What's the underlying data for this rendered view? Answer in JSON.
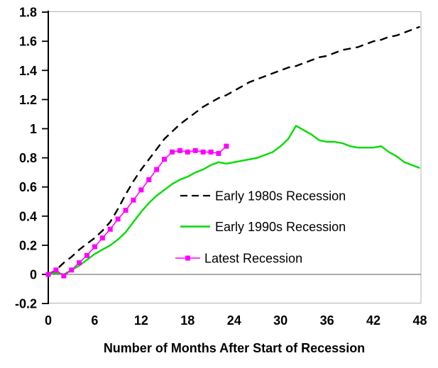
{
  "chart_data": {
    "type": "line",
    "title": "",
    "xlabel": "Number of Months After Start of Recession",
    "ylabel": "",
    "xlim": [
      0,
      48
    ],
    "ylim": [
      -0.2,
      1.8
    ],
    "grid": false,
    "zero_line": true,
    "legend_position": "inside-right",
    "x_tick_labels": [
      "0",
      "6",
      "12",
      "18",
      "24",
      "30",
      "36",
      "42",
      "48"
    ],
    "x_tick_values": [
      0,
      6,
      12,
      18,
      24,
      30,
      36,
      42,
      48
    ],
    "y_tick_labels": [
      "-0.2",
      "0",
      "0.2",
      "0.4",
      "0.6",
      "0.8",
      "1",
      "1.2",
      "1.4",
      "1.6",
      "1.8"
    ],
    "y_tick_values": [
      -0.2,
      0,
      0.2,
      0.4,
      0.6,
      0.8,
      1,
      1.2,
      1.4,
      1.6,
      1.8
    ],
    "x_unit": "months_after_recession_start",
    "series": [
      {
        "name": "Early 1980s Recession",
        "color": "#000000",
        "line_style": "dashed",
        "marker": "none",
        "x_start": 0,
        "values": [
          0.0,
          0.03,
          0.08,
          0.12,
          0.17,
          0.21,
          0.25,
          0.3,
          0.36,
          0.45,
          0.55,
          0.64,
          0.72,
          0.79,
          0.86,
          0.93,
          0.98,
          1.03,
          1.07,
          1.11,
          1.15,
          1.18,
          1.21,
          1.23,
          1.26,
          1.29,
          1.32,
          1.34,
          1.36,
          1.38,
          1.4,
          1.42,
          1.43,
          1.45,
          1.47,
          1.49,
          1.5,
          1.52,
          1.54,
          1.55,
          1.56,
          1.58,
          1.6,
          1.61,
          1.63,
          1.64,
          1.66,
          1.68,
          1.7
        ]
      },
      {
        "name": "Early 1990s Recession",
        "color": "#00DC00",
        "line_style": "solid",
        "marker": "none",
        "x_start": 0,
        "values": [
          0.0,
          0.01,
          0.0,
          0.03,
          0.06,
          0.1,
          0.14,
          0.17,
          0.2,
          0.24,
          0.29,
          0.36,
          0.43,
          0.49,
          0.54,
          0.58,
          0.62,
          0.65,
          0.67,
          0.7,
          0.72,
          0.75,
          0.77,
          0.76,
          0.77,
          0.78,
          0.79,
          0.8,
          0.82,
          0.84,
          0.88,
          0.93,
          1.02,
          0.99,
          0.96,
          0.92,
          0.91,
          0.91,
          0.9,
          0.88,
          0.87,
          0.87,
          0.87,
          0.88,
          0.84,
          0.81,
          0.77,
          0.75,
          0.73
        ]
      },
      {
        "name": "Latest Recession",
        "color": "#FF00FF",
        "line_style": "solid",
        "marker": "square",
        "x_start": 0,
        "values": [
          0.0,
          0.03,
          -0.01,
          0.03,
          0.08,
          0.13,
          0.19,
          0.25,
          0.31,
          0.38,
          0.44,
          0.51,
          0.58,
          0.65,
          0.72,
          0.79,
          0.84,
          0.85,
          0.84,
          0.85,
          0.84,
          0.84,
          0.83,
          0.88
        ]
      }
    ],
    "axis_colors": {
      "axis_line": "#000000",
      "plot_border": "#b3b3b3",
      "zero_line": "#595959",
      "text": "#000000",
      "background": "#ffffff"
    }
  }
}
